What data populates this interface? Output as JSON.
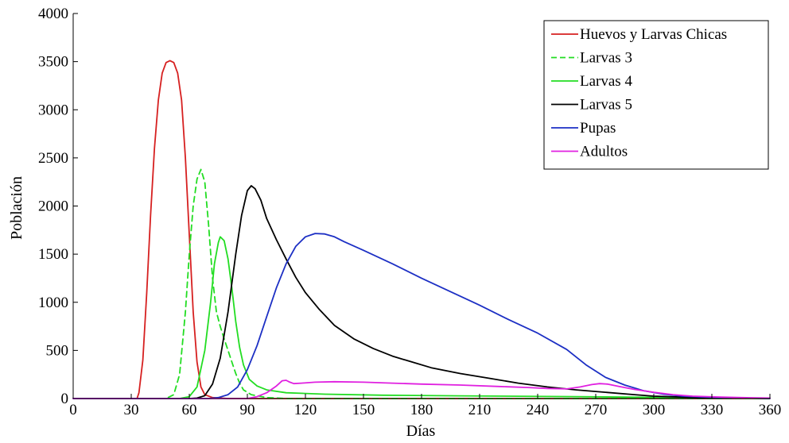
{
  "chart_data": {
    "type": "line",
    "title": "",
    "xlabel": "Días",
    "ylabel": "Población",
    "xlim": [
      0,
      360
    ],
    "ylim": [
      0,
      4000
    ],
    "xticks": [
      0,
      30,
      60,
      90,
      120,
      150,
      180,
      210,
      240,
      270,
      300,
      330,
      360
    ],
    "yticks": [
      0,
      500,
      1000,
      1500,
      2000,
      2500,
      3000,
      3500,
      4000
    ],
    "grid": false,
    "legend_position": "top-right",
    "series": [
      {
        "name": "Huevos y Larvas Chicas",
        "color": "#d62020",
        "dash": "solid",
        "points": [
          [
            0,
            0
          ],
          [
            33,
            0
          ],
          [
            34,
            60
          ],
          [
            36,
            400
          ],
          [
            38,
            1100
          ],
          [
            40,
            1900
          ],
          [
            42,
            2600
          ],
          [
            44,
            3100
          ],
          [
            46,
            3380
          ],
          [
            48,
            3490
          ],
          [
            50,
            3510
          ],
          [
            52,
            3490
          ],
          [
            54,
            3380
          ],
          [
            56,
            3100
          ],
          [
            58,
            2500
          ],
          [
            60,
            1700
          ],
          [
            62,
            900
          ],
          [
            64,
            380
          ],
          [
            66,
            120
          ],
          [
            68,
            40
          ],
          [
            72,
            10
          ],
          [
            80,
            0
          ],
          [
            360,
            0
          ]
        ]
      },
      {
        "name": "Larvas 3",
        "color": "#22dd22",
        "dash": "dashed",
        "points": [
          [
            0,
            0
          ],
          [
            48,
            0
          ],
          [
            52,
            40
          ],
          [
            55,
            250
          ],
          [
            58,
            900
          ],
          [
            60,
            1500
          ],
          [
            62,
            2000
          ],
          [
            64,
            2280
          ],
          [
            66,
            2380
          ],
          [
            68,
            2250
          ],
          [
            70,
            1800
          ],
          [
            72,
            1250
          ],
          [
            74,
            900
          ],
          [
            76,
            750
          ],
          [
            78,
            620
          ],
          [
            80,
            500
          ],
          [
            82,
            380
          ],
          [
            84,
            260
          ],
          [
            86,
            160
          ],
          [
            88,
            90
          ],
          [
            92,
            40
          ],
          [
            100,
            10
          ],
          [
            110,
            0
          ],
          [
            360,
            0
          ]
        ]
      },
      {
        "name": "Larvas 4",
        "color": "#22dd22",
        "dash": "solid",
        "points": [
          [
            0,
            0
          ],
          [
            55,
            0
          ],
          [
            60,
            20
          ],
          [
            64,
            120
          ],
          [
            68,
            500
          ],
          [
            71,
            1000
          ],
          [
            73,
            1400
          ],
          [
            75,
            1620
          ],
          [
            76,
            1680
          ],
          [
            78,
            1640
          ],
          [
            80,
            1450
          ],
          [
            82,
            1150
          ],
          [
            84,
            800
          ],
          [
            86,
            530
          ],
          [
            88,
            350
          ],
          [
            91,
            200
          ],
          [
            95,
            130
          ],
          [
            100,
            90
          ],
          [
            110,
            60
          ],
          [
            130,
            45
          ],
          [
            160,
            35
          ],
          [
            200,
            28
          ],
          [
            260,
            20
          ],
          [
            300,
            12
          ],
          [
            330,
            6
          ],
          [
            360,
            2
          ]
        ]
      },
      {
        "name": "Larvas 5",
        "color": "#000000",
        "dash": "solid",
        "points": [
          [
            0,
            0
          ],
          [
            60,
            0
          ],
          [
            64,
            5
          ],
          [
            68,
            30
          ],
          [
            72,
            150
          ],
          [
            76,
            420
          ],
          [
            80,
            900
          ],
          [
            84,
            1500
          ],
          [
            87,
            1900
          ],
          [
            90,
            2160
          ],
          [
            92,
            2210
          ],
          [
            94,
            2180
          ],
          [
            97,
            2060
          ],
          [
            100,
            1870
          ],
          [
            105,
            1650
          ],
          [
            110,
            1450
          ],
          [
            115,
            1260
          ],
          [
            120,
            1100
          ],
          [
            127,
            930
          ],
          [
            135,
            760
          ],
          [
            145,
            620
          ],
          [
            155,
            520
          ],
          [
            165,
            440
          ],
          [
            175,
            380
          ],
          [
            185,
            320
          ],
          [
            200,
            260
          ],
          [
            215,
            210
          ],
          [
            230,
            160
          ],
          [
            245,
            120
          ],
          [
            260,
            90
          ],
          [
            275,
            65
          ],
          [
            290,
            40
          ],
          [
            300,
            25
          ],
          [
            315,
            15
          ],
          [
            330,
            8
          ],
          [
            345,
            4
          ],
          [
            360,
            2
          ]
        ]
      },
      {
        "name": "Pupas",
        "color": "#1c2fc4",
        "dash": "solid",
        "points": [
          [
            0,
            0
          ],
          [
            70,
            0
          ],
          [
            75,
            10
          ],
          [
            80,
            40
          ],
          [
            85,
            120
          ],
          [
            90,
            300
          ],
          [
            95,
            550
          ],
          [
            100,
            850
          ],
          [
            105,
            1150
          ],
          [
            110,
            1400
          ],
          [
            115,
            1580
          ],
          [
            120,
            1680
          ],
          [
            125,
            1715
          ],
          [
            130,
            1710
          ],
          [
            135,
            1680
          ],
          [
            140,
            1630
          ],
          [
            150,
            1540
          ],
          [
            165,
            1400
          ],
          [
            180,
            1250
          ],
          [
            195,
            1110
          ],
          [
            210,
            970
          ],
          [
            225,
            820
          ],
          [
            240,
            680
          ],
          [
            255,
            510
          ],
          [
            265,
            350
          ],
          [
            275,
            220
          ],
          [
            285,
            140
          ],
          [
            295,
            80
          ],
          [
            305,
            45
          ],
          [
            315,
            25
          ],
          [
            330,
            12
          ],
          [
            345,
            5
          ],
          [
            360,
            2
          ]
        ]
      },
      {
        "name": "Adultos",
        "color": "#e020e0",
        "dash": "solid",
        "points": [
          [
            0,
            0
          ],
          [
            90,
            0
          ],
          [
            95,
            20
          ],
          [
            100,
            60
          ],
          [
            105,
            130
          ],
          [
            108,
            185
          ],
          [
            110,
            190
          ],
          [
            112,
            170
          ],
          [
            114,
            155
          ],
          [
            118,
            160
          ],
          [
            125,
            170
          ],
          [
            135,
            175
          ],
          [
            150,
            170
          ],
          [
            165,
            160
          ],
          [
            180,
            150
          ],
          [
            200,
            140
          ],
          [
            220,
            125
          ],
          [
            235,
            115
          ],
          [
            245,
            105
          ],
          [
            255,
            100
          ],
          [
            262,
            120
          ],
          [
            268,
            145
          ],
          [
            272,
            155
          ],
          [
            276,
            150
          ],
          [
            282,
            125
          ],
          [
            290,
            95
          ],
          [
            300,
            65
          ],
          [
            310,
            40
          ],
          [
            320,
            25
          ],
          [
            335,
            15
          ],
          [
            350,
            8
          ],
          [
            360,
            5
          ]
        ]
      }
    ]
  }
}
